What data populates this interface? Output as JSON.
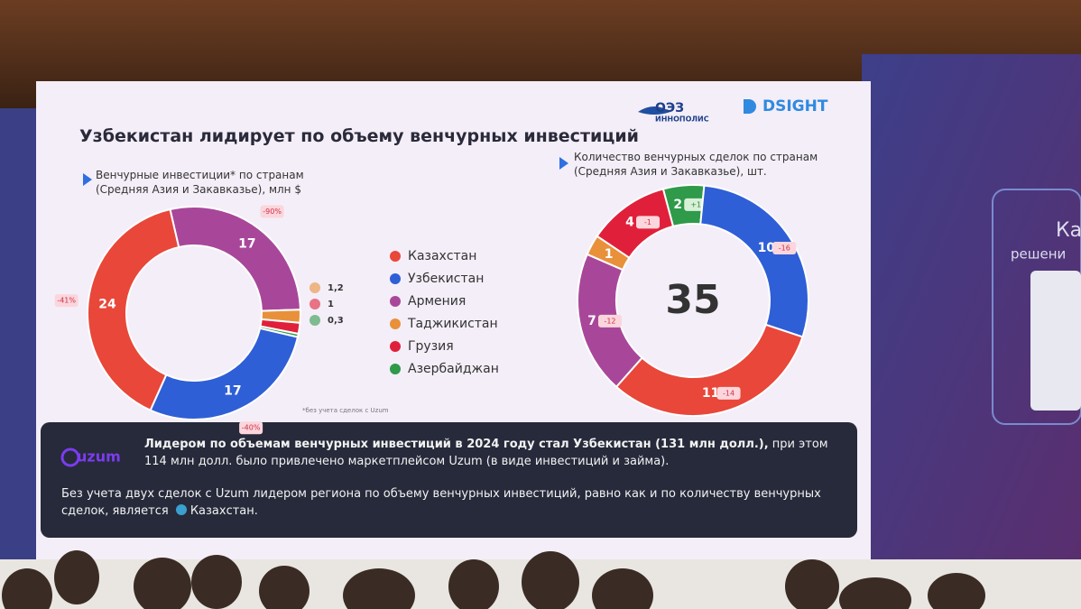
{
  "header": {
    "title": "Узбекистан лидирует по объему венчурных инвестиций",
    "logo_oez": "ОЭЗ",
    "logo_innopolis": "ИННОПОЛИС",
    "logo_dsight": "DSIGHT"
  },
  "chart_data": [
    {
      "type": "donut",
      "title": "Венчурные инвестиции* по странам (Средняя Азия и Закавказье), млн $",
      "categories": [
        "Армения",
        "Таджикистан",
        "Грузия",
        "Азербайджан",
        "Узбекистан",
        "Казахстан"
      ],
      "values": [
        17,
        1.2,
        1,
        0.3,
        17,
        24
      ],
      "value_labels": [
        "17",
        "1,2",
        "1",
        "0,3",
        "17",
        "24"
      ],
      "colors": [
        "#a8479a",
        "#e8913a",
        "#e0203a",
        "#2e9a4a",
        "#2f5fd6",
        "#e8473a"
      ],
      "changes": [
        -90,
        null,
        null,
        null,
        -40,
        -41
      ],
      "change_labels": [
        "-90%",
        null,
        null,
        null,
        "-40%",
        "-41%"
      ],
      "footnote": "*без учета сделок с Uzum"
    },
    {
      "type": "donut",
      "title": "Количество венчурных сделок по странам (Средняя Азия и Закавказье), шт.",
      "categories": [
        "Азербайджан",
        "Узбекистан",
        "Казахстан",
        "Армения",
        "Таджикистан",
        "Грузия"
      ],
      "values": [
        2,
        10,
        11,
        7,
        1,
        4
      ],
      "colors": [
        "#2e9a4a",
        "#2f5fd6",
        "#e8473a",
        "#a8479a",
        "#e8913a",
        "#e0203a"
      ],
      "changes": [
        1,
        -16,
        -14,
        -12,
        null,
        -1
      ],
      "change_labels": [
        "+1",
        "-16",
        "-14",
        "-12",
        null,
        "-1"
      ],
      "total": 35
    }
  ],
  "legend": [
    {
      "name": "Казахстан",
      "color": "#e8473a"
    },
    {
      "name": "Узбекистан",
      "color": "#2f5fd6"
    },
    {
      "name": "Армения",
      "color": "#a8479a"
    },
    {
      "name": "Таджикистан",
      "color": "#e8913a"
    },
    {
      "name": "Грузия",
      "color": "#e0203a"
    },
    {
      "name": "Азербайджан",
      "color": "#2e9a4a"
    }
  ],
  "callout": {
    "logo": "uzum",
    "lead_bold": "Лидером по объемам венчурных инвестиций в 2024 году стал Узбекистан (131 млн долл.),",
    "lead_rest": "при этом 114 млн долл. было привлечено маркетплейсом Uzum (в виде инвестиций и займа).",
    "note": "Без учета двух сделок с Uzum лидером региона по объему венчурных инвестиций, равно как и по количеству венчурных сделок, является",
    "note_end": "Казахстан."
  },
  "backdrop": {
    "screen_text_1": "Ка",
    "screen_text_2": "решени"
  }
}
